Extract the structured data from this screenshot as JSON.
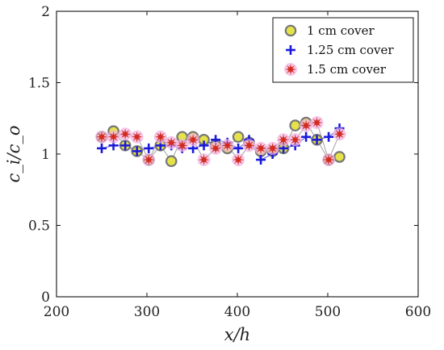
{
  "chart_data": {
    "type": "scatter",
    "xlabel": "x/h",
    "ylabel": "c_i/c_o",
    "xlim": [
      200,
      600
    ],
    "ylim": [
      0,
      2
    ],
    "x_ticks": [
      "200",
      "300",
      "400",
      "500",
      "600"
    ],
    "y_ticks": [
      "0",
      "0.5",
      "1",
      "1.5",
      "2"
    ],
    "grid": false,
    "legend_position": "top-right",
    "series": [
      {
        "name": "1 cm cover",
        "marker": "circle",
        "color": "#e6e24a",
        "edge_color": "#777777",
        "points": [
          {
            "x": 250,
            "y": 1.12
          },
          {
            "x": 263,
            "y": 1.16
          },
          {
            "x": 276,
            "y": 1.06
          },
          {
            "x": 289,
            "y": 1.02
          },
          {
            "x": 302,
            "y": 0.96
          },
          {
            "x": 315,
            "y": 1.06
          },
          {
            "x": 327,
            "y": 0.95
          },
          {
            "x": 339,
            "y": 1.12
          },
          {
            "x": 351,
            "y": 1.12
          },
          {
            "x": 363,
            "y": 1.1
          },
          {
            "x": 376,
            "y": 1.06
          },
          {
            "x": 389,
            "y": 1.04
          },
          {
            "x": 401,
            "y": 1.12
          },
          {
            "x": 413,
            "y": 1.08
          },
          {
            "x": 426,
            "y": 1.02
          },
          {
            "x": 439,
            "y": 1.02
          },
          {
            "x": 451,
            "y": 1.04
          },
          {
            "x": 464,
            "y": 1.2
          },
          {
            "x": 476,
            "y": 1.22
          },
          {
            "x": 488,
            "y": 1.1
          },
          {
            "x": 501,
            "y": 0.96
          },
          {
            "x": 513,
            "y": 0.98
          }
        ]
      },
      {
        "name": "1.25 cm cover",
        "marker": "plus",
        "color": "#1a1adb",
        "points": [
          {
            "x": 250,
            "y": 1.04
          },
          {
            "x": 263,
            "y": 1.06
          },
          {
            "x": 276,
            "y": 1.06
          },
          {
            "x": 289,
            "y": 1.02
          },
          {
            "x": 302,
            "y": 1.04
          },
          {
            "x": 315,
            "y": 1.06
          },
          {
            "x": 327,
            "y": 1.06
          },
          {
            "x": 339,
            "y": 1.04
          },
          {
            "x": 351,
            "y": 1.04
          },
          {
            "x": 363,
            "y": 1.06
          },
          {
            "x": 376,
            "y": 1.1
          },
          {
            "x": 389,
            "y": 1.08
          },
          {
            "x": 401,
            "y": 1.04
          },
          {
            "x": 413,
            "y": 1.1
          },
          {
            "x": 426,
            "y": 0.96
          },
          {
            "x": 439,
            "y": 1.0
          },
          {
            "x": 451,
            "y": 1.04
          },
          {
            "x": 464,
            "y": 1.06
          },
          {
            "x": 476,
            "y": 1.12
          },
          {
            "x": 488,
            "y": 1.1
          },
          {
            "x": 501,
            "y": 1.12
          },
          {
            "x": 513,
            "y": 1.18
          }
        ]
      },
      {
        "name": "1.5 cm cover",
        "marker": "star",
        "color": "#d42a1f",
        "halo_color": "#f2b6e2",
        "points": [
          {
            "x": 250,
            "y": 1.12
          },
          {
            "x": 263,
            "y": 1.12
          },
          {
            "x": 276,
            "y": 1.14
          },
          {
            "x": 289,
            "y": 1.12
          },
          {
            "x": 302,
            "y": 0.96
          },
          {
            "x": 315,
            "y": 1.12
          },
          {
            "x": 327,
            "y": 1.08
          },
          {
            "x": 339,
            "y": 1.06
          },
          {
            "x": 351,
            "y": 1.1
          },
          {
            "x": 363,
            "y": 0.96
          },
          {
            "x": 376,
            "y": 1.04
          },
          {
            "x": 389,
            "y": 1.06
          },
          {
            "x": 401,
            "y": 0.96
          },
          {
            "x": 413,
            "y": 1.06
          },
          {
            "x": 426,
            "y": 1.04
          },
          {
            "x": 439,
            "y": 1.04
          },
          {
            "x": 451,
            "y": 1.1
          },
          {
            "x": 464,
            "y": 1.1
          },
          {
            "x": 476,
            "y": 1.2
          },
          {
            "x": 488,
            "y": 1.22
          },
          {
            "x": 501,
            "y": 0.96
          },
          {
            "x": 513,
            "y": 1.14
          }
        ]
      }
    ]
  }
}
